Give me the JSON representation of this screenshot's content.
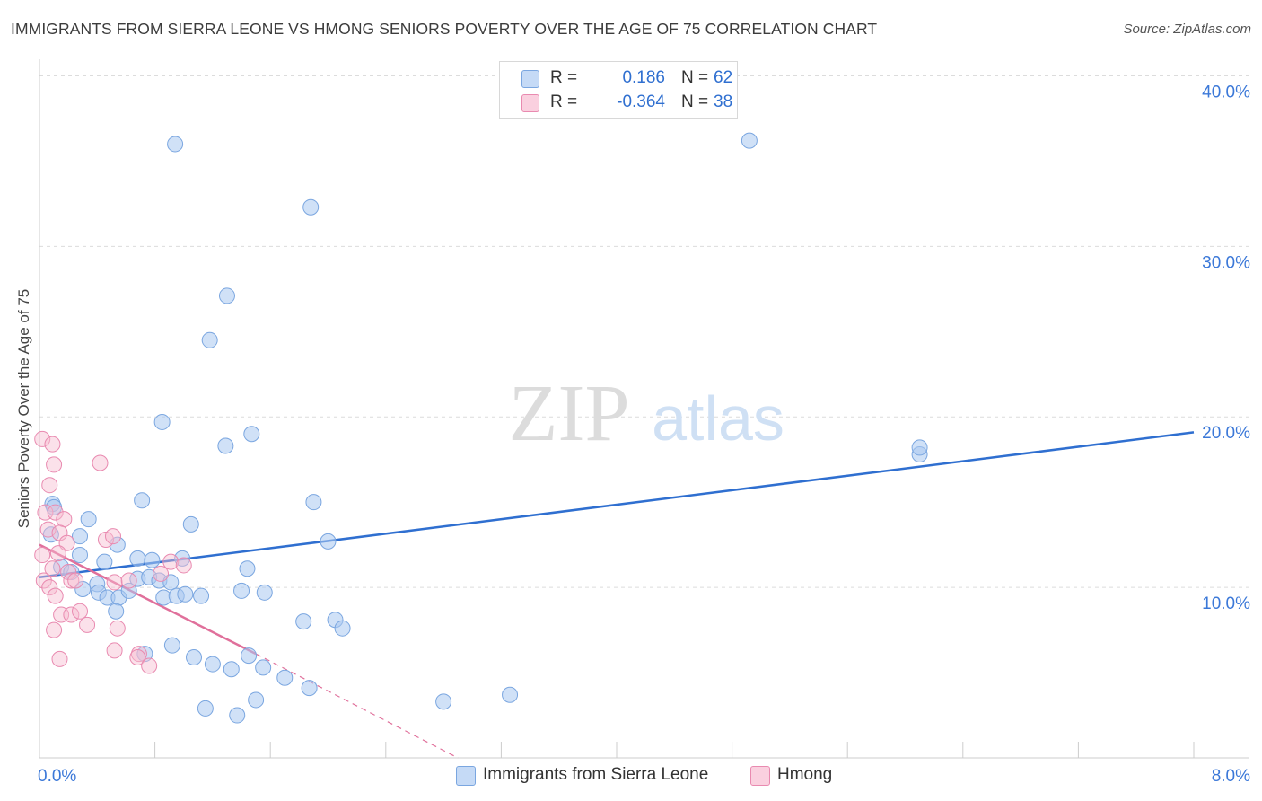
{
  "title": "IMMIGRANTS FROM SIERRA LEONE VS HMONG SENIORS POVERTY OVER THE AGE OF 75 CORRELATION CHART",
  "source": "Source: ZipAtlas.com",
  "watermark": {
    "zip": "ZIP",
    "atlas": "atlas"
  },
  "legend": {
    "r_label": "R =",
    "n_label": "N =",
    "series": [
      {
        "name": "Immigrants from Sierra Leone",
        "r": "0.186",
        "n": "62",
        "color": "#a9c8f0",
        "stroke": "#7aa6e0",
        "line": "#2f6fd0"
      },
      {
        "name": "Hmong",
        "r": "-0.364",
        "n": "38",
        "color": "#f7bcd0",
        "stroke": "#e98ab0",
        "line": "#e0709b"
      }
    ]
  },
  "chart_data": {
    "type": "scatter",
    "title": "IMMIGRANTS FROM SIERRA LEONE VS HMONG SENIORS POVERTY OVER THE AGE OF 75 CORRELATION CHART",
    "xlabel": "",
    "ylabel": "Seniors Poverty Over the Age of 75",
    "xlim": [
      0,
      8
    ],
    "ylim": [
      0,
      40.5
    ],
    "x_tick_labels": [
      {
        "value": 0,
        "label": "0.0%"
      },
      {
        "value": 8,
        "label": "8.0%"
      }
    ],
    "y_tick_labels": [
      {
        "value": 10,
        "label": "10.0%"
      },
      {
        "value": 20,
        "label": "20.0%"
      },
      {
        "value": 30,
        "label": "30.0%"
      },
      {
        "value": 40,
        "label": "40.0%"
      }
    ],
    "grid": true,
    "legend_position": "top-center",
    "series": [
      {
        "name": "Immigrants from Sierra Leone",
        "points": [
          [
            0.09,
            14.9
          ],
          [
            0.1,
            14.7
          ],
          [
            0.08,
            13.1
          ],
          [
            0.15,
            11.2
          ],
          [
            0.22,
            10.9
          ],
          [
            0.28,
            11.9
          ],
          [
            0.34,
            14.0
          ],
          [
            0.28,
            13.0
          ],
          [
            0.4,
            10.2
          ],
          [
            0.45,
            11.5
          ],
          [
            0.3,
            9.9
          ],
          [
            0.41,
            9.7
          ],
          [
            0.54,
            12.5
          ],
          [
            0.47,
            9.4
          ],
          [
            0.55,
            9.4
          ],
          [
            0.53,
            8.6
          ],
          [
            0.62,
            9.8
          ],
          [
            0.68,
            10.5
          ],
          [
            0.76,
            10.6
          ],
          [
            0.68,
            11.7
          ],
          [
            0.71,
            15.1
          ],
          [
            0.78,
            11.6
          ],
          [
            0.83,
            10.4
          ],
          [
            0.91,
            10.3
          ],
          [
            0.86,
            9.4
          ],
          [
            0.95,
            9.5
          ],
          [
            1.01,
            9.6
          ],
          [
            0.99,
            11.7
          ],
          [
            1.05,
            13.7
          ],
          [
            1.12,
            9.5
          ],
          [
            0.92,
            6.6
          ],
          [
            0.73,
            6.1
          ],
          [
            1.07,
            5.9
          ],
          [
            1.2,
            5.5
          ],
          [
            1.33,
            5.2
          ],
          [
            1.15,
            2.9
          ],
          [
            1.37,
            2.5
          ],
          [
            1.45,
            6.0
          ],
          [
            1.55,
            5.3
          ],
          [
            1.5,
            3.4
          ],
          [
            1.4,
            9.8
          ],
          [
            1.44,
            11.1
          ],
          [
            1.56,
            9.7
          ],
          [
            1.7,
            4.7
          ],
          [
            1.83,
            8.0
          ],
          [
            1.87,
            4.1
          ],
          [
            2.05,
            8.1
          ],
          [
            2.1,
            7.6
          ],
          [
            2.0,
            12.7
          ],
          [
            1.9,
            15.0
          ],
          [
            1.29,
            18.3
          ],
          [
            1.47,
            19.0
          ],
          [
            0.85,
            19.7
          ],
          [
            1.18,
            24.5
          ],
          [
            1.3,
            27.1
          ],
          [
            0.94,
            36.0
          ],
          [
            1.88,
            32.3
          ],
          [
            4.92,
            36.2
          ],
          [
            2.8,
            3.3
          ],
          [
            3.26,
            3.7
          ],
          [
            6.1,
            17.8
          ],
          [
            6.1,
            18.2
          ]
        ]
      },
      {
        "name": "Hmong",
        "points": [
          [
            0.02,
            18.7
          ],
          [
            0.09,
            18.4
          ],
          [
            0.1,
            17.2
          ],
          [
            0.07,
            16.0
          ],
          [
            0.04,
            14.4
          ],
          [
            0.11,
            14.4
          ],
          [
            0.17,
            14.0
          ],
          [
            0.06,
            13.4
          ],
          [
            0.14,
            13.2
          ],
          [
            0.19,
            12.6
          ],
          [
            0.02,
            11.9
          ],
          [
            0.13,
            12.0
          ],
          [
            0.09,
            11.1
          ],
          [
            0.2,
            10.9
          ],
          [
            0.03,
            10.4
          ],
          [
            0.07,
            10.0
          ],
          [
            0.11,
            9.5
          ],
          [
            0.22,
            10.4
          ],
          [
            0.25,
            10.4
          ],
          [
            0.15,
            8.4
          ],
          [
            0.22,
            8.4
          ],
          [
            0.28,
            8.6
          ],
          [
            0.1,
            7.5
          ],
          [
            0.33,
            7.8
          ],
          [
            0.42,
            17.3
          ],
          [
            0.46,
            12.8
          ],
          [
            0.51,
            13.0
          ],
          [
            0.52,
            10.3
          ],
          [
            0.62,
            10.4
          ],
          [
            0.54,
            7.6
          ],
          [
            0.52,
            6.3
          ],
          [
            0.69,
            6.1
          ],
          [
            0.68,
            5.9
          ],
          [
            0.76,
            5.4
          ],
          [
            0.84,
            10.8
          ],
          [
            0.91,
            11.5
          ],
          [
            1.0,
            11.3
          ],
          [
            0.14,
            5.8
          ]
        ]
      }
    ],
    "trend_lines": [
      {
        "series": "Immigrants from Sierra Leone",
        "from": [
          0,
          10.6
        ],
        "to": [
          8,
          19.1
        ]
      },
      {
        "series": "Hmong",
        "from": [
          0,
          12.5
        ],
        "to": [
          1.5,
          6.1
        ],
        "dashed_extension_to": [
          2.9,
          0
        ]
      }
    ]
  }
}
